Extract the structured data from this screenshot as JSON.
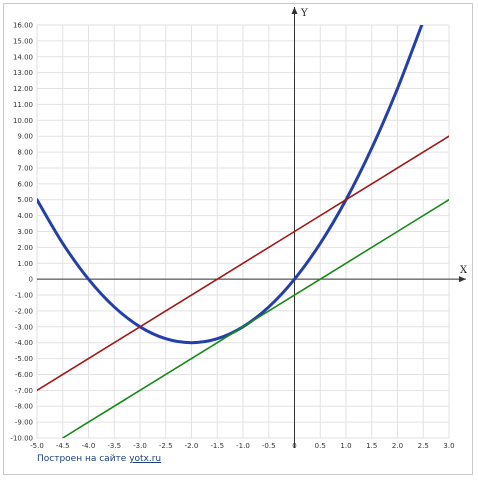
{
  "chart_data": {
    "type": "line",
    "title": "",
    "xlabel": "X",
    "ylabel": "Y",
    "xlim": [
      -5,
      3
    ],
    "ylim": [
      -10,
      16
    ],
    "x_ticks": [
      "-5.0",
      "-4.5",
      "-4.0",
      "-3.5",
      "-3.0",
      "-2.5",
      "-2.0",
      "-1.5",
      "-1.0",
      "-0.5",
      "0",
      "0.5",
      "1.0",
      "1.5",
      "2.0",
      "2.5",
      "3.0"
    ],
    "y_ticks": [
      "16.00",
      "15.00",
      "14.00",
      "13.00",
      "12.00",
      "11.00",
      "10.00",
      "9.00",
      "8.00",
      "7.00",
      "6.00",
      "5.00",
      "4.00",
      "3.00",
      "2.00",
      "1.00",
      "0",
      "-1.00",
      "-2.00",
      "-3.00",
      "-4.00",
      "-5.00",
      "-6.00",
      "-7.00",
      "-8.00",
      "-9.00",
      "-10.00"
    ],
    "grid": true,
    "series": [
      {
        "color": "#2440a8",
        "x": [
          -5.0,
          -4.5,
          -4.0,
          -3.5,
          -3.0,
          -2.5,
          -2.0,
          -1.5,
          -1.0,
          -0.5,
          0.0,
          0.5,
          1.0,
          1.5,
          2.0,
          2.5
        ],
        "y": [
          5.0,
          2.25,
          0.0,
          -1.75,
          -3.0,
          -3.75,
          -4.0,
          -3.75,
          -3.0,
          -1.75,
          0.0,
          2.25,
          5.0,
          8.25,
          12.0,
          16.25
        ]
      },
      {
        "color": "#a01818",
        "x": [
          -5.0,
          -4.0,
          -3.0,
          -2.0,
          -1.0,
          0.0,
          1.0,
          2.0,
          3.0
        ],
        "y": [
          -7.0,
          -5.0,
          -3.0,
          -1.0,
          1.0,
          3.0,
          5.0,
          7.0,
          9.0
        ]
      },
      {
        "color": "#188a18",
        "x": [
          -4.5,
          -4.0,
          -3.0,
          -2.0,
          -1.0,
          0.0,
          1.0,
          2.0,
          3.0
        ],
        "y": [
          -10.0,
          -9.0,
          -7.0,
          -5.0,
          -3.0,
          -1.0,
          1.0,
          3.0,
          5.0
        ]
      }
    ]
  },
  "footer": {
    "credit_text": "Построен на сайте ",
    "credit_link": "yotx.ru"
  }
}
